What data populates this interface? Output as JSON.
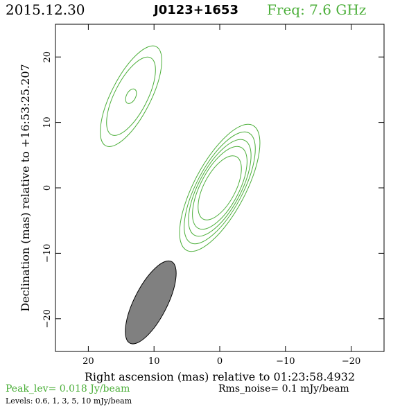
{
  "header": {
    "date": "2015.12.30",
    "source": "J0123+1653",
    "freq": "Freq: 7.6 GHz"
  },
  "chart_data": {
    "type": "contour",
    "xlabel": "Right ascension (mas) relative to 01:23:58.4932",
    "ylabel": "Declination (mas) relative to +16:53:25.207",
    "xlim": [
      25,
      -25
    ],
    "ylim": [
      -25,
      25
    ],
    "xticks": [
      20,
      10,
      0,
      -10,
      -20
    ],
    "yticks": [
      20,
      10,
      0,
      -10,
      -20
    ],
    "xtick_labels": [
      "20",
      "10",
      "0",
      "−10",
      "−20"
    ],
    "ytick_labels": [
      "20",
      "10",
      "0",
      "−10",
      "−20"
    ],
    "contour_color": "#4caf3a",
    "components": [
      {
        "center": [
          0,
          0
        ],
        "pa_deg": 28,
        "contours": [
          {
            "level": 0.6,
            "a": 10.8,
            "b": 3.9
          },
          {
            "level": 1,
            "a": 9.5,
            "b": 3.5
          },
          {
            "level": 3,
            "a": 8.2,
            "b": 3.2
          },
          {
            "level": 5,
            "a": 7.0,
            "b": 2.9
          },
          {
            "level": 10,
            "a": 5.4,
            "b": 2.4
          }
        ]
      },
      {
        "center": [
          13.5,
          14.0
        ],
        "pa_deg": 27,
        "contours": [
          {
            "level": 0.6,
            "a": 8.5,
            "b": 3.0
          },
          {
            "level": 1,
            "a": 6.6,
            "b": 2.5
          },
          {
            "level": 3,
            "a": 1.2,
            "b": 0.7
          }
        ]
      }
    ],
    "beam": {
      "center": [
        10.5,
        -17.5
      ],
      "major": 14.0,
      "minor": 5.0,
      "pa_deg": 27,
      "color": "#808080"
    }
  },
  "footer": {
    "peak": "Peak_lev=  0.018 Jy/beam",
    "rms": "Rms_noise=  0.1 mJy/beam",
    "levels": "Levels: 0.6,   1,   3,   5,  10 mJy/beam"
  }
}
